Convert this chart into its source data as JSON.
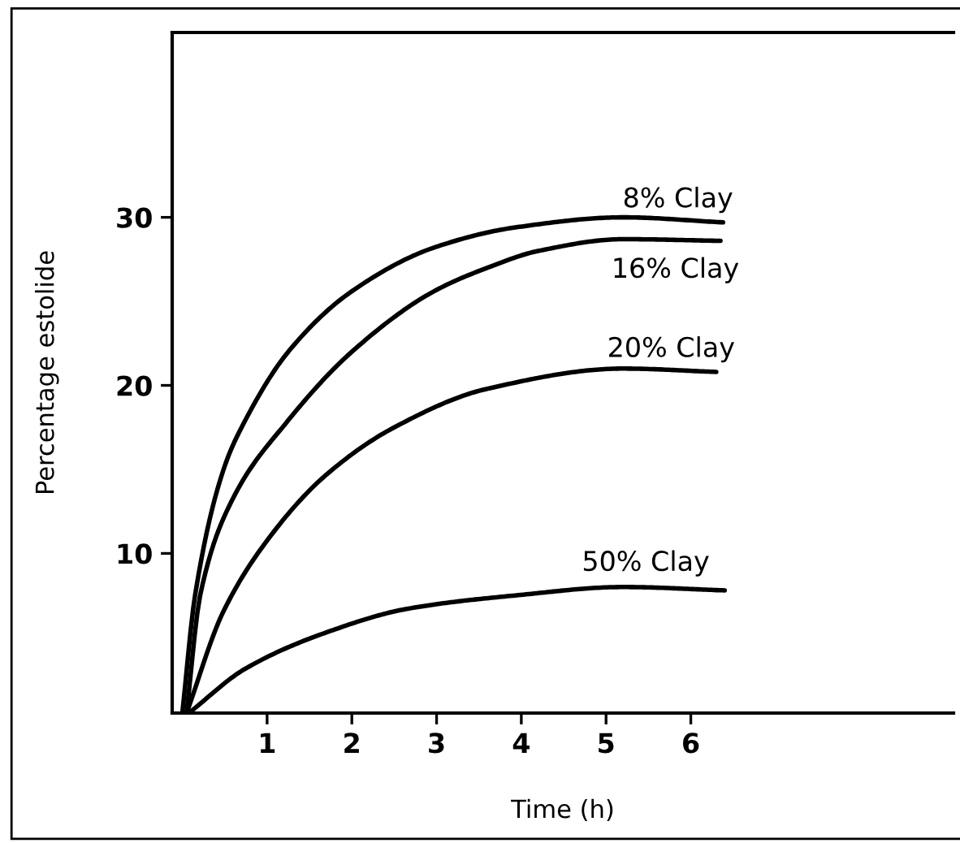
{
  "chart_data": {
    "type": "line",
    "xlabel": "Time (h)",
    "ylabel": "Percentage estolide",
    "xlim": [
      -0.12,
      9.1
    ],
    "ylim": [
      0.5,
      41
    ],
    "xticks": [
      1,
      2,
      3,
      4,
      5,
      6
    ],
    "yticks": [
      10,
      20,
      30
    ],
    "grid": false,
    "legend": false,
    "marker": "none",
    "line_style": "solid",
    "series": [
      {
        "name": "8% Clay",
        "color": "#000000",
        "x": [
          0.0,
          0.15,
          0.5,
          0.73,
          1.25,
          2.0,
          2.97,
          3.93,
          5.2,
          6.38
        ],
        "values": [
          0.5,
          7.5,
          15.2,
          17.8,
          22,
          25.6,
          28.2,
          29.4,
          30,
          29.7
        ]
      },
      {
        "name": "16% Clay",
        "color": "#000000",
        "x": [
          0.05,
          0.21,
          0.6,
          1.23,
          2.0,
          2.97,
          3.6,
          4.2,
          5.2,
          6.35
        ],
        "values": [
          0.5,
          7.5,
          13.3,
          17.8,
          22,
          25.6,
          27.0,
          28.0,
          28.7,
          28.6
        ]
      },
      {
        "name": "20% Clay",
        "color": "#000000",
        "x": [
          0.05,
          0.48,
          1.05,
          1.68,
          2.5,
          3.6,
          5.2,
          6.3
        ],
        "values": [
          0.5,
          6.5,
          11.1,
          14.6,
          17.5,
          19.8,
          21,
          20.8
        ]
      },
      {
        "name": "50% Clay",
        "color": "#000000",
        "x": [
          0.1,
          0.73,
          1.7,
          2.65,
          3.93,
          5.2,
          6.4
        ],
        "values": [
          0.6,
          3.1,
          5.3,
          6.7,
          7.5,
          8.0,
          7.8
        ]
      }
    ]
  }
}
